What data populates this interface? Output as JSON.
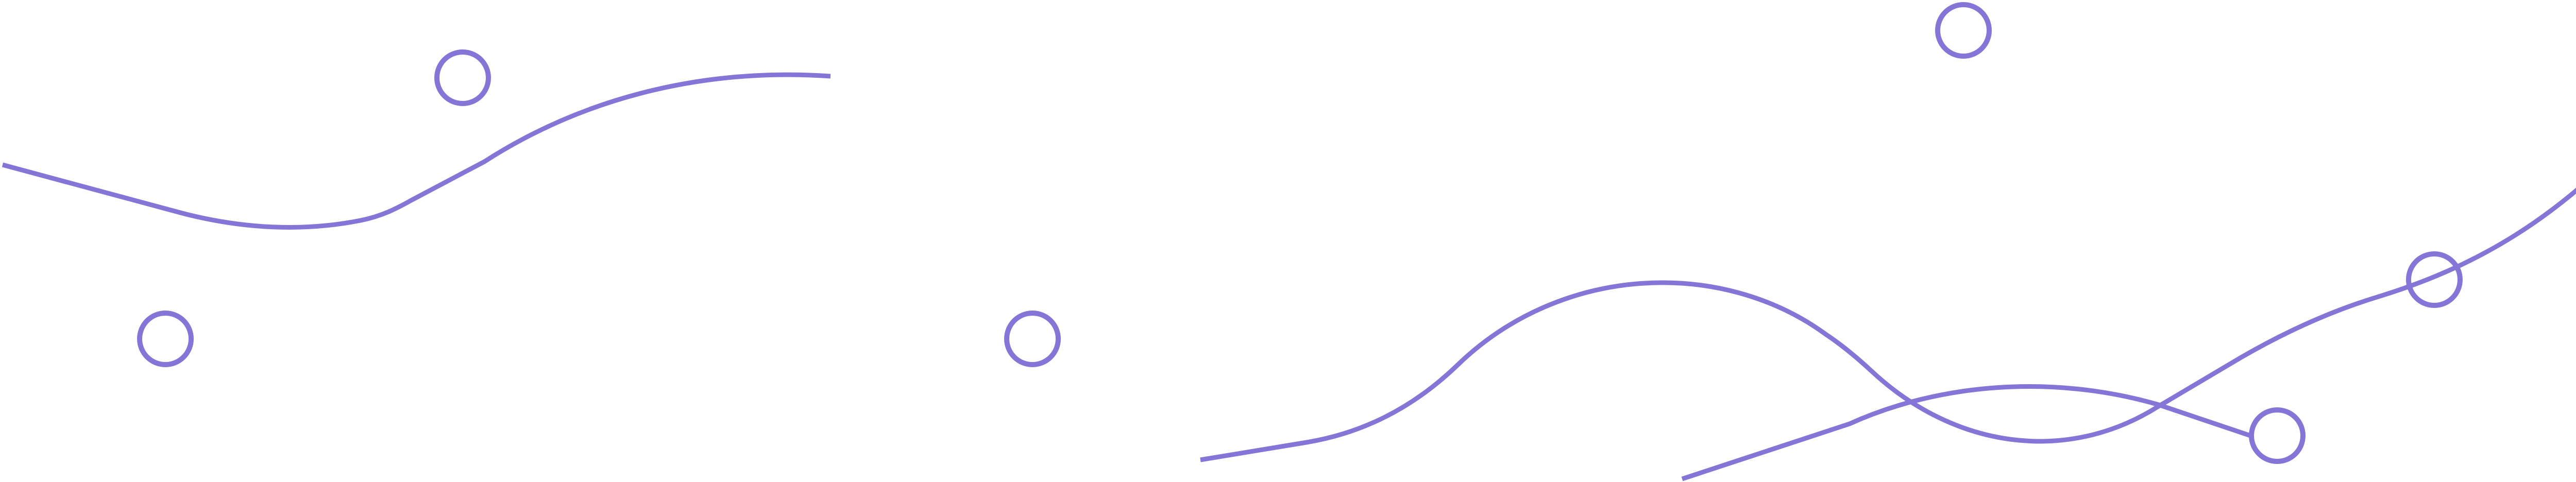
{
  "theme": {
    "background": "#ffffff",
    "stroke_color": "#8575d6"
  },
  "decorations": {
    "lines": [
      {
        "name": "wave-line-left"
      },
      {
        "name": "wave-line-center"
      },
      {
        "name": "wave-line-right-lower"
      },
      {
        "name": "wave-line-right-upper"
      }
    ],
    "rings": [
      {
        "name": "ring-top-left"
      },
      {
        "name": "ring-bottom-left"
      },
      {
        "name": "ring-middle"
      },
      {
        "name": "ring-top-right"
      },
      {
        "name": "ring-right-lower"
      },
      {
        "name": "ring-right-upper"
      }
    ]
  }
}
